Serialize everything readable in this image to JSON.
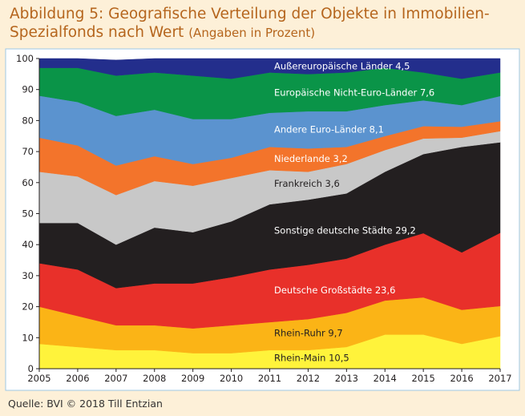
{
  "figure": {
    "title": "Abbildung 5: Geografische Verteilung der Objekte in Immobilien-Spezialfonds nach Wert",
    "subtitle": "(Angaben in Prozent)",
    "source": "Quelle: BVI © 2018 Till Entzian"
  },
  "chart_data": {
    "type": "area",
    "stacked": true,
    "x": [
      "2005",
      "2006",
      "2007",
      "2008",
      "2009",
      "2010",
      "2011",
      "2012",
      "2013",
      "2014",
      "2015",
      "2016",
      "2017"
    ],
    "ylim": [
      0,
      100
    ],
    "yticks": [
      0,
      10,
      20,
      30,
      40,
      50,
      60,
      70,
      80,
      90,
      100
    ],
    "series": [
      {
        "name": "Rhein-Main",
        "label_value": "10,5",
        "color": "#fff33b",
        "values": [
          8,
          7,
          6,
          6,
          5,
          5,
          6,
          6,
          7,
          11,
          11,
          8,
          10.5
        ]
      },
      {
        "name": "Rhein-Ruhr",
        "label_value": "9,7",
        "color": "#fbb416",
        "values": [
          12,
          10,
          8,
          8,
          8,
          9,
          9,
          10,
          11,
          11,
          12,
          11,
          9.7
        ]
      },
      {
        "name": "Deutsche Großstädte",
        "label_value": "23,6",
        "color": "#e8302a",
        "values": [
          14,
          15,
          12,
          13.5,
          14.5,
          15.5,
          17,
          17.5,
          17.5,
          18,
          20.7,
          18.5,
          23.6
        ]
      },
      {
        "name": "Sonstige deutsche Städte",
        "label_value": "29,2",
        "color": "#231f20",
        "values": [
          13,
          15,
          14,
          18,
          16.5,
          18,
          21,
          21,
          21,
          23.5,
          25.5,
          34,
          29.2
        ]
      },
      {
        "name": "Frankreich",
        "label_value": "3,6",
        "color": "#c8c8c8",
        "values": [
          16.5,
          15,
          16,
          15,
          15,
          14,
          11,
          9,
          9.5,
          7,
          5,
          3,
          3.6
        ]
      },
      {
        "name": "Niederlande",
        "label_value": "3,2",
        "color": "#f3742b",
        "values": [
          11,
          10,
          9.5,
          8,
          7,
          6.5,
          7.5,
          7.5,
          5.5,
          4.5,
          4,
          3.5,
          3.2
        ]
      },
      {
        "name": "Andere Euro-Länder",
        "label_value": "8,1",
        "color": "#5b93cf",
        "values": [
          13.5,
          14,
          16,
          15,
          14.5,
          12.5,
          11,
          12,
          11.5,
          10,
          8.3,
          7,
          8.1
        ]
      },
      {
        "name": "Europäische Nicht-Euro-Länder",
        "label_value": "7,6",
        "color": "#0a9448",
        "values": [
          9,
          11,
          13,
          12,
          14,
          13,
          13,
          12,
          12.5,
          12,
          9,
          8.5,
          7.6
        ]
      },
      {
        "name": "Außereuropäische Länder",
        "label_value": "4,5",
        "color": "#232e8c",
        "values": [
          3,
          3.5,
          5,
          5.5,
          5.5,
          7.5,
          5,
          5,
          4.5,
          4,
          4.5,
          7,
          4.5
        ]
      }
    ]
  }
}
